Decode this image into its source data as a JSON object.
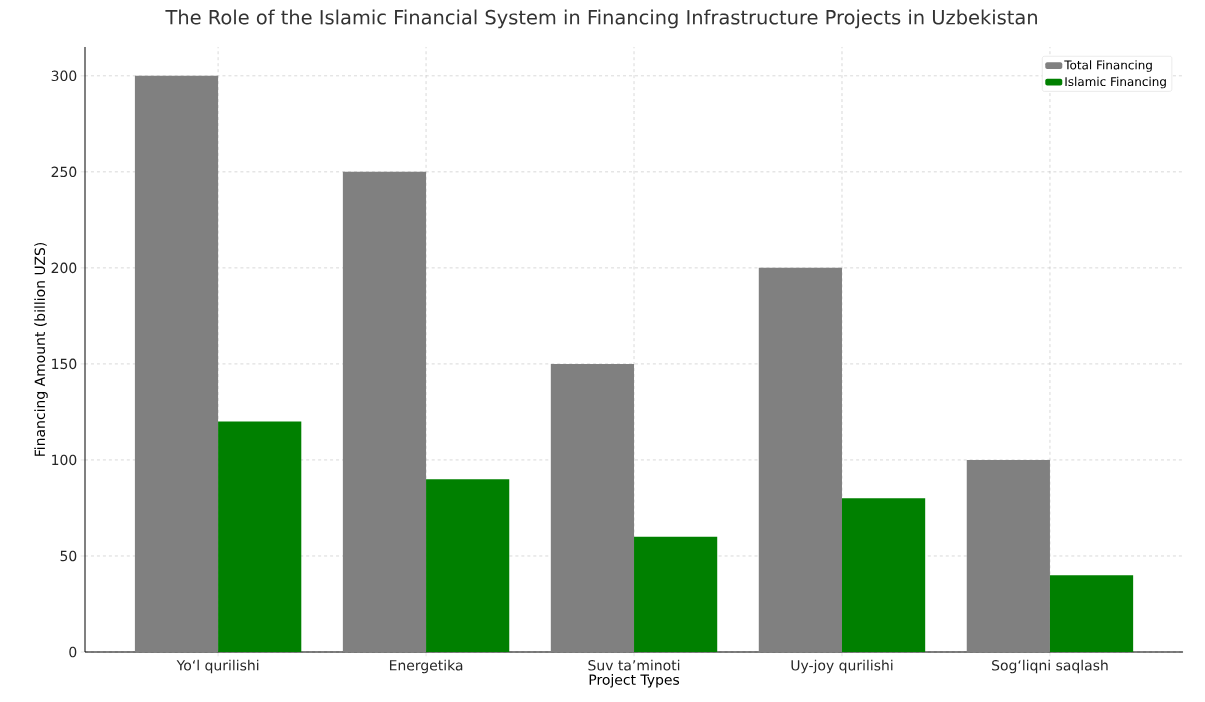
{
  "chart_data": {
    "type": "bar",
    "title": "The Role of the Islamic Financial System in Financing Infrastructure Projects in Uzbekistan",
    "xlabel": "Project Types",
    "ylabel": "Financing Amount (billion UZS)",
    "categories": [
      "Yoʻl qurilishi",
      "Energetika",
      "Suv ta’minoti",
      "Uy-joy qurilishi",
      "Sogʻliqni saqlash"
    ],
    "series": [
      {
        "name": "Total Financing",
        "color": "#808080",
        "values": [
          300,
          250,
          150,
          200,
          100
        ]
      },
      {
        "name": "Islamic Financing",
        "color": "#008000",
        "values": [
          120,
          90,
          60,
          80,
          40
        ]
      }
    ],
    "ylim": [
      0,
      315
    ],
    "yticks": [
      0,
      50,
      100,
      150,
      200,
      250,
      300
    ],
    "grid": true,
    "legend": "top right"
  }
}
